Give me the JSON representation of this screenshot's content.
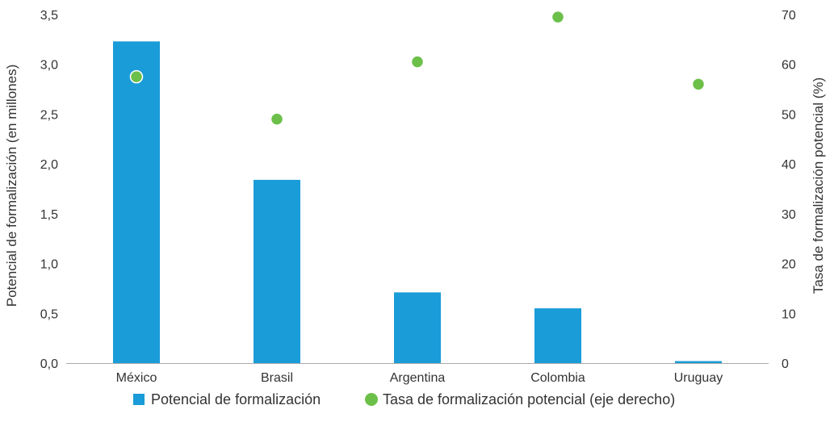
{
  "chart_data": {
    "type": "bar",
    "categories": [
      "México",
      "Brasil",
      "Argentina",
      "Colombia",
      "Uruguay"
    ],
    "series": [
      {
        "name": "Potencial de formalización",
        "type": "bar",
        "axis": "left",
        "values": [
          3.23,
          1.84,
          0.71,
          0.55,
          0.02
        ]
      },
      {
        "name": "Tasa de formalización potencial (eje derecho)",
        "type": "scatter",
        "axis": "right",
        "values": [
          57.5,
          49,
          60.5,
          69.5,
          56
        ]
      }
    ],
    "ylabel": "Potencial de formalización (en millones)",
    "ylabel_right": "Tasa de formalización potencial (%)",
    "ylim": [
      0,
      3.5
    ],
    "ylim_right": [
      0,
      70
    ],
    "yticks": [
      "0,0",
      "0,5",
      "1,0",
      "1,5",
      "2,0",
      "2,5",
      "3,0",
      "3,5"
    ],
    "yticks_right": [
      "0",
      "10",
      "20",
      "30",
      "40",
      "50",
      "60",
      "70"
    ],
    "grid": false,
    "legend_position": "bottom",
    "colors": {
      "bar": "#1a9cd8",
      "point": "#6cc04a",
      "axis": "#aaaaaa"
    }
  }
}
